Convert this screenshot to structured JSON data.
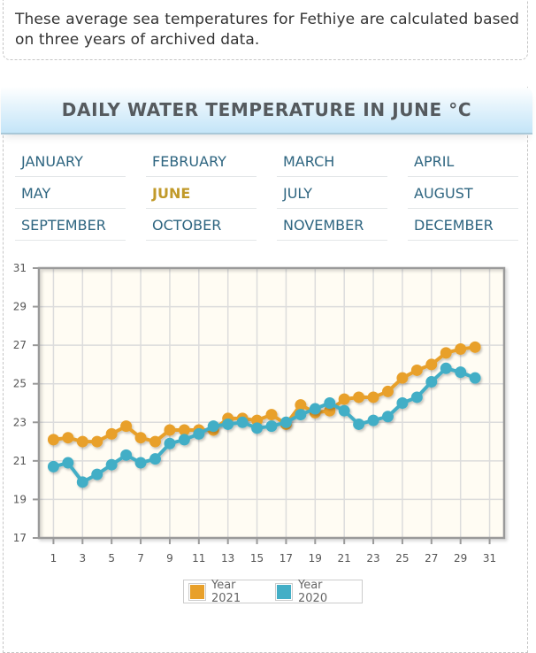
{
  "intro": {
    "text": "These average sea temperatures for Fethiye are calculated based on three years of archived data."
  },
  "panel": {
    "title": "DAILY WATER TEMPERATURE IN JUNE °C"
  },
  "months": [
    {
      "label": "JANUARY",
      "active": false
    },
    {
      "label": "FEBRUARY",
      "active": false
    },
    {
      "label": "MARCH",
      "active": false
    },
    {
      "label": "APRIL",
      "active": false
    },
    {
      "label": "MAY",
      "active": false
    },
    {
      "label": "JUNE",
      "active": true
    },
    {
      "label": "JULY",
      "active": false
    },
    {
      "label": "AUGUST",
      "active": false
    },
    {
      "label": "SEPTEMBER",
      "active": false
    },
    {
      "label": "OCTOBER",
      "active": false
    },
    {
      "label": "NOVEMBER",
      "active": false
    },
    {
      "label": "DECEMBER",
      "active": false
    }
  ],
  "colors": {
    "year2021": "#e8a02a",
    "year2020": "#43aec6",
    "active_month": "#c19a2a",
    "month_link": "#2e6580",
    "plot_bg": "#fffcf3"
  },
  "chart_data": {
    "type": "line",
    "title": "DAILY WATER TEMPERATURE IN JUNE °C",
    "xlabel": "",
    "ylabel": "",
    "xlim": [
      0,
      32
    ],
    "ylim": [
      17,
      31
    ],
    "x_ticks": [
      1,
      3,
      5,
      7,
      9,
      11,
      13,
      15,
      17,
      19,
      21,
      23,
      25,
      27,
      29,
      31
    ],
    "y_ticks": [
      17,
      19,
      21,
      23,
      25,
      27,
      29,
      31
    ],
    "grid": true,
    "legend_position": "bottom-center",
    "x": [
      1,
      2,
      3,
      4,
      5,
      6,
      7,
      8,
      9,
      10,
      11,
      12,
      13,
      14,
      15,
      16,
      17,
      18,
      19,
      20,
      21,
      22,
      23,
      24,
      25,
      26,
      27,
      28,
      29,
      30
    ],
    "series": [
      {
        "name": "Year 2021",
        "color": "#e8a02a",
        "values": [
          22.1,
          22.2,
          22.0,
          22.0,
          22.4,
          22.8,
          22.2,
          22.0,
          22.6,
          22.6,
          22.6,
          22.6,
          23.2,
          23.2,
          23.1,
          23.4,
          22.9,
          23.9,
          23.5,
          23.6,
          24.2,
          24.3,
          24.3,
          24.6,
          25.3,
          25.7,
          26.0,
          26.6,
          26.8,
          26.9
        ]
      },
      {
        "name": "Year 2020",
        "color": "#43aec6",
        "values": [
          20.7,
          20.9,
          19.9,
          20.3,
          20.8,
          21.3,
          20.9,
          21.1,
          21.9,
          22.1,
          22.4,
          22.8,
          22.9,
          23.0,
          22.7,
          22.8,
          23.0,
          23.4,
          23.7,
          24.0,
          23.6,
          22.9,
          23.1,
          23.3,
          24.0,
          24.3,
          25.1,
          25.8,
          25.6,
          25.3
        ]
      }
    ]
  }
}
